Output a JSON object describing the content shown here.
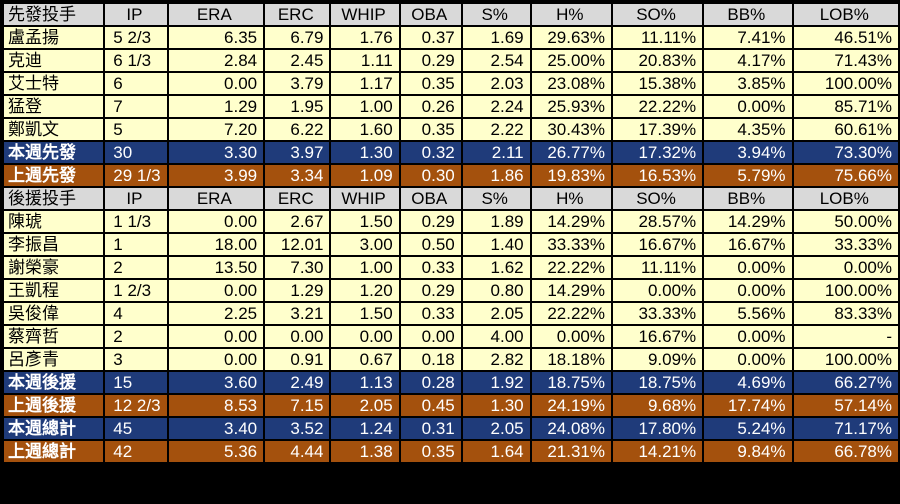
{
  "columns": [
    "IP",
    "ERA",
    "ERC",
    "WHIP",
    "OBA",
    "S%",
    "H%",
    "SO%",
    "BB%",
    "LOB%"
  ],
  "sections": [
    {
      "header": "先發投手",
      "rows": [
        [
          "盧孟揚",
          "5 2/3",
          "6.35",
          "6.79",
          "1.76",
          "0.37",
          "1.69",
          "29.63%",
          "11.11%",
          "7.41%",
          "46.51%"
        ],
        [
          "克迪",
          "6 1/3",
          "2.84",
          "2.45",
          "1.11",
          "0.29",
          "2.54",
          "25.00%",
          "20.83%",
          "4.17%",
          "71.43%"
        ],
        [
          "艾士特",
          "6",
          "0.00",
          "3.79",
          "1.17",
          "0.35",
          "2.03",
          "23.08%",
          "15.38%",
          "3.85%",
          "100.00%"
        ],
        [
          "猛登",
          "7",
          "1.29",
          "1.95",
          "1.00",
          "0.26",
          "2.24",
          "25.93%",
          "22.22%",
          "0.00%",
          "85.71%"
        ],
        [
          "鄭凱文",
          "5",
          "7.20",
          "6.22",
          "1.60",
          "0.35",
          "2.22",
          "30.43%",
          "17.39%",
          "4.35%",
          "60.61%"
        ]
      ],
      "summaries": [
        {
          "type": "cur",
          "cells": [
            "本週先發",
            "30",
            "3.30",
            "3.97",
            "1.30",
            "0.32",
            "2.11",
            "26.77%",
            "17.32%",
            "3.94%",
            "73.30%"
          ]
        },
        {
          "type": "prev",
          "cells": [
            "上週先發",
            "29 1/3",
            "3.99",
            "3.34",
            "1.09",
            "0.30",
            "1.86",
            "19.83%",
            "16.53%",
            "5.79%",
            "75.66%"
          ]
        }
      ]
    },
    {
      "header": "後援投手",
      "rows": [
        [
          "陳琥",
          "1 1/3",
          "0.00",
          "2.67",
          "1.50",
          "0.29",
          "1.89",
          "14.29%",
          "28.57%",
          "14.29%",
          "50.00%"
        ],
        [
          "李振昌",
          "1",
          "18.00",
          "12.01",
          "3.00",
          "0.50",
          "1.40",
          "33.33%",
          "16.67%",
          "16.67%",
          "33.33%"
        ],
        [
          "謝榮豪",
          "2",
          "13.50",
          "7.30",
          "1.00",
          "0.33",
          "1.62",
          "22.22%",
          "11.11%",
          "0.00%",
          "0.00%"
        ],
        [
          "王凱程",
          "1 2/3",
          "0.00",
          "1.29",
          "1.20",
          "0.29",
          "0.80",
          "14.29%",
          "0.00%",
          "0.00%",
          "100.00%"
        ],
        [
          "吳俊偉",
          "4",
          "2.25",
          "3.21",
          "1.50",
          "0.33",
          "2.05",
          "22.22%",
          "33.33%",
          "5.56%",
          "83.33%"
        ],
        [
          "蔡齊哲",
          "2",
          "0.00",
          "0.00",
          "0.00",
          "0.00",
          "4.00",
          "0.00%",
          "16.67%",
          "0.00%",
          "-"
        ],
        [
          "呂彥青",
          "3",
          "0.00",
          "0.91",
          "0.67",
          "0.18",
          "2.82",
          "18.18%",
          "9.09%",
          "0.00%",
          "100.00%"
        ]
      ],
      "summaries": [
        {
          "type": "cur",
          "cells": [
            "本週後援",
            "15",
            "3.60",
            "2.49",
            "1.13",
            "0.28",
            "1.92",
            "18.75%",
            "18.75%",
            "4.69%",
            "66.27%"
          ]
        },
        {
          "type": "prev",
          "cells": [
            "上週後援",
            "12 2/3",
            "8.53",
            "7.15",
            "2.05",
            "0.45",
            "1.30",
            "24.19%",
            "9.68%",
            "17.74%",
            "57.14%"
          ]
        }
      ]
    }
  ],
  "totals": [
    {
      "type": "cur",
      "cells": [
        "本週總計",
        "45",
        "3.40",
        "3.52",
        "1.24",
        "0.31",
        "2.05",
        "24.08%",
        "17.80%",
        "5.24%",
        "71.17%"
      ]
    },
    {
      "type": "prev",
      "cells": [
        "上週總計",
        "42",
        "5.36",
        "4.44",
        "1.38",
        "0.35",
        "1.64",
        "21.31%",
        "14.21%",
        "9.84%",
        "66.78%"
      ]
    }
  ],
  "colors": {
    "header_bg": "#d9d9d9",
    "row_bg": "#ffffcc",
    "this_week_bg": "#1f3b7a",
    "last_week_bg": "#a4510d"
  }
}
